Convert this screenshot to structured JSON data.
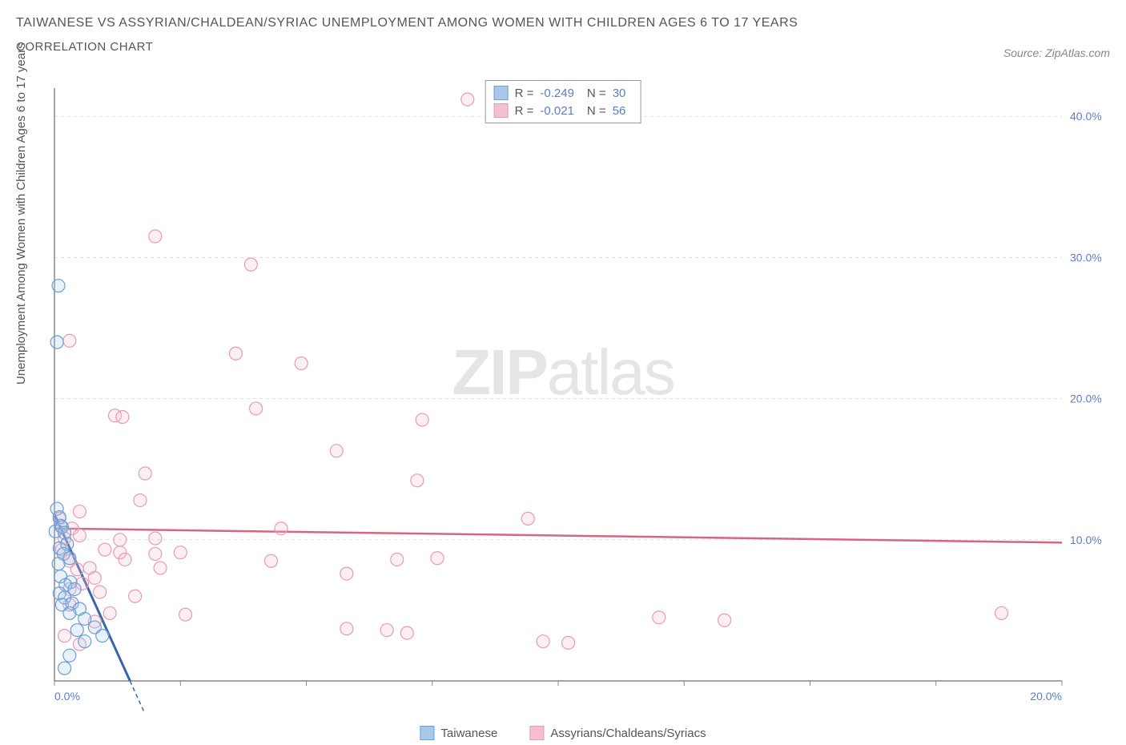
{
  "title": "TAIWANESE VS ASSYRIAN/CHALDEAN/SYRIAC UNEMPLOYMENT AMONG WOMEN WITH CHILDREN AGES 6 TO 17 YEARS",
  "subtitle": "CORRELATION CHART",
  "source_label": "Source: ZipAtlas.com",
  "y_axis_label": "Unemployment Among Women with Children Ages 6 to 17 years",
  "watermark_bold": "ZIP",
  "watermark_light": "atlas",
  "chart": {
    "type": "scatter",
    "xlim": [
      0,
      20
    ],
    "ylim": [
      0,
      42
    ],
    "x_ticks": [
      0,
      2.5,
      5,
      7.5,
      10,
      12.5,
      15,
      17.5,
      20
    ],
    "x_tick_labels": {
      "0": "0.0%",
      "20": "20.0%"
    },
    "y_ticks": [
      10,
      20,
      30,
      40
    ],
    "y_tick_labels": {
      "10": "10.0%",
      "20": "20.0%",
      "30": "30.0%",
      "40": "40.0%"
    },
    "tick_label_color": "#5b7fc7",
    "tick_label_fontsize": 14,
    "grid_color": "#dddddd",
    "axis_color": "#888888",
    "background_color": "#ffffff",
    "marker_radius": 8,
    "marker_stroke_width": 1.2,
    "marker_fill_opacity": 0.25
  },
  "series": [
    {
      "name": "Taiwanese",
      "color": "#6a9ed8",
      "fill": "#a8c8e8",
      "R": "-0.249",
      "N": "30",
      "trend": {
        "x1": 0,
        "y1": 11.8,
        "x2": 1.5,
        "y2": 0,
        "dash_extend_x": 2.4
      },
      "points": [
        [
          0.08,
          28.0
        ],
        [
          0.05,
          24.0
        ],
        [
          0.05,
          12.2
        ],
        [
          0.1,
          11.6
        ],
        [
          0.12,
          11.0
        ],
        [
          0.02,
          10.6
        ],
        [
          0.15,
          10.9
        ],
        [
          0.2,
          10.5
        ],
        [
          0.1,
          9.4
        ],
        [
          0.25,
          9.7
        ],
        [
          0.18,
          9.0
        ],
        [
          0.08,
          8.3
        ],
        [
          0.3,
          8.7
        ],
        [
          0.12,
          7.4
        ],
        [
          0.32,
          7.0
        ],
        [
          0.22,
          6.8
        ],
        [
          0.1,
          6.2
        ],
        [
          0.4,
          6.5
        ],
        [
          0.2,
          5.9
        ],
        [
          0.15,
          5.4
        ],
        [
          0.35,
          5.5
        ],
        [
          0.5,
          5.1
        ],
        [
          0.3,
          4.8
        ],
        [
          0.6,
          4.4
        ],
        [
          0.45,
          3.6
        ],
        [
          0.8,
          3.8
        ],
        [
          0.95,
          3.2
        ],
        [
          0.6,
          2.8
        ],
        [
          0.3,
          1.8
        ],
        [
          0.2,
          0.9
        ]
      ]
    },
    {
      "name": "Assyrians/Chaldeans/Syriacs",
      "color": "#e89ab0",
      "fill": "#f4c0d0",
      "R": "-0.021",
      "N": "56",
      "trend": {
        "x1": 0,
        "y1": 10.8,
        "x2": 20,
        "y2": 9.8
      },
      "points": [
        [
          8.2,
          41.2
        ],
        [
          2.0,
          31.5
        ],
        [
          3.9,
          29.5
        ],
        [
          0.3,
          24.1
        ],
        [
          3.6,
          23.2
        ],
        [
          4.9,
          22.5
        ],
        [
          4.0,
          19.3
        ],
        [
          1.2,
          18.8
        ],
        [
          1.35,
          18.7
        ],
        [
          7.3,
          18.5
        ],
        [
          5.6,
          16.3
        ],
        [
          1.8,
          14.7
        ],
        [
          7.2,
          14.2
        ],
        [
          1.7,
          12.8
        ],
        [
          0.5,
          12.0
        ],
        [
          0.1,
          11.5
        ],
        [
          9.4,
          11.5
        ],
        [
          0.35,
          10.8
        ],
        [
          0.5,
          10.3
        ],
        [
          0.2,
          10.1
        ],
        [
          4.5,
          10.8
        ],
        [
          1.3,
          10.0
        ],
        [
          2.0,
          10.1
        ],
        [
          1.0,
          9.3
        ],
        [
          0.15,
          9.3
        ],
        [
          1.3,
          9.1
        ],
        [
          2.0,
          9.0
        ],
        [
          2.5,
          9.1
        ],
        [
          0.3,
          8.5
        ],
        [
          6.8,
          8.6
        ],
        [
          7.6,
          8.7
        ],
        [
          0.7,
          8.0
        ],
        [
          1.4,
          8.6
        ],
        [
          0.45,
          7.9
        ],
        [
          2.1,
          8.0
        ],
        [
          4.3,
          8.5
        ],
        [
          5.8,
          7.6
        ],
        [
          0.8,
          7.3
        ],
        [
          0.55,
          6.9
        ],
        [
          0.3,
          6.5
        ],
        [
          0.9,
          6.3
        ],
        [
          1.6,
          6.0
        ],
        [
          0.3,
          5.4
        ],
        [
          1.1,
          4.8
        ],
        [
          2.6,
          4.7
        ],
        [
          12.0,
          4.5
        ],
        [
          13.3,
          4.3
        ],
        [
          18.8,
          4.8
        ],
        [
          5.8,
          3.7
        ],
        [
          6.6,
          3.6
        ],
        [
          7.0,
          3.4
        ],
        [
          9.7,
          2.8
        ],
        [
          10.2,
          2.7
        ],
        [
          0.2,
          3.2
        ],
        [
          0.5,
          2.6
        ],
        [
          0.8,
          4.2
        ]
      ]
    }
  ],
  "stats_box": {
    "r_label": "R =",
    "n_label": "N ="
  },
  "legend": {
    "series1": "Taiwanese",
    "series2": "Assyrians/Chaldeans/Syriacs"
  }
}
